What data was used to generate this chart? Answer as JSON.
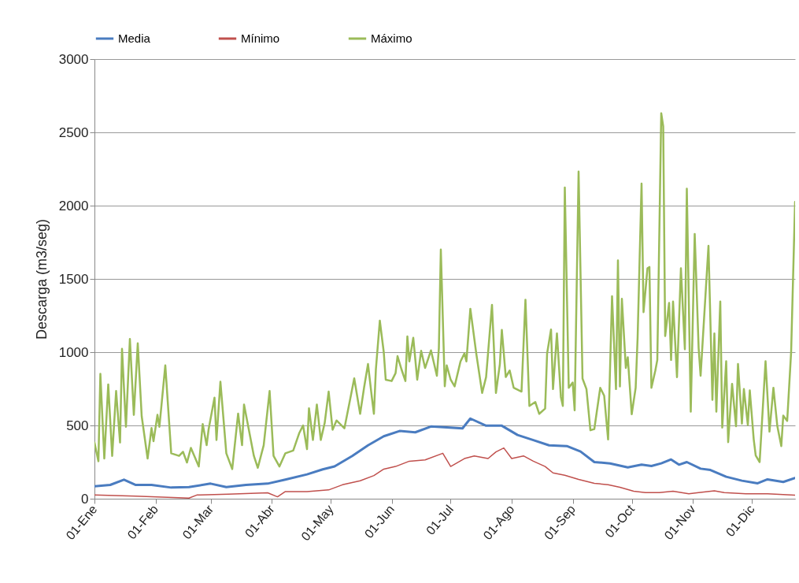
{
  "chart_data": {
    "type": "line",
    "ylabel": "Descarga (m3/seg)",
    "xlim": [
      "--01-01",
      "--12-23"
    ],
    "ylim": [
      0,
      3000
    ],
    "xticks": [
      {
        "value": "--01-01",
        "label": "01-Ene"
      },
      {
        "value": "--02-01",
        "label": "01-Feb"
      },
      {
        "value": "--03-01",
        "label": "01-Mar"
      },
      {
        "value": "--04-01",
        "label": "01-Abr"
      },
      {
        "value": "--05-01",
        "label": "01-May"
      },
      {
        "value": "--06-01",
        "label": "01-Jun"
      },
      {
        "value": "--07-01",
        "label": "01-Jul"
      },
      {
        "value": "--08-01",
        "label": "01-Ago"
      },
      {
        "value": "--09-01",
        "label": "01-Sep"
      },
      {
        "value": "--10-01",
        "label": "01-Oct"
      },
      {
        "value": "--11-01",
        "label": "01-Nov"
      },
      {
        "value": "--12-01",
        "label": "01-Dic"
      }
    ],
    "yticks": [
      0,
      500,
      1000,
      1500,
      2000,
      2500,
      3000
    ],
    "grid": "y",
    "legend": "top",
    "series": [
      {
        "name": "Media",
        "color": "#4a7cc0",
        "x": [
          "--01-01",
          "--01-09",
          "--01-16",
          "--01-22",
          "--01-30",
          "--02-09",
          "--02-18",
          "--03-01",
          "--03-09",
          "--03-19",
          "--03-30",
          "--04-08",
          "--04-19",
          "--04-27",
          "--05-03",
          "--05-12",
          "--05-20",
          "--05-28",
          "--06-05",
          "--06-13",
          "--06-21",
          "--06-29",
          "--07-07",
          "--07-11",
          "--07-19",
          "--07-27",
          "--08-04",
          "--08-12",
          "--08-20",
          "--08-29",
          "--09-05",
          "--09-12",
          "--09-20",
          "--09-29",
          "--10-06",
          "--10-11",
          "--10-16",
          "--10-21",
          "--10-25",
          "--10-29",
          "--11-05",
          "--11-10",
          "--11-18",
          "--11-26",
          "--12-04",
          "--12-09",
          "--12-17",
          "--12-23"
        ],
        "values": [
          85,
          94,
          130,
          94,
          94,
          76,
          79,
          103,
          79,
          94,
          103,
          130,
          166,
          200,
          220,
          292,
          364,
          426,
          462,
          453,
          493,
          486,
          480,
          547,
          498,
          498,
          435,
          400,
          364,
          359,
          322,
          250,
          241,
          214,
          232,
          223,
          241,
          268,
          232,
          250,
          205,
          196,
          150,
          123,
          105,
          132,
          114,
          141
        ]
      },
      {
        "name": "Mínimo",
        "color": "#c0504d",
        "x": [
          "--01-01",
          "--01-22",
          "--02-18",
          "--02-22",
          "--03-10",
          "--03-30",
          "--04-04",
          "--04-08",
          "--04-19",
          "--04-30",
          "--05-07",
          "--05-16",
          "--05-23",
          "--05-28",
          "--06-03",
          "--06-10",
          "--06-18",
          "--06-27",
          "--07-01",
          "--07-08",
          "--07-13",
          "--07-20",
          "--07-24",
          "--07-28",
          "--08-01",
          "--08-07",
          "--08-12",
          "--08-18",
          "--08-22",
          "--08-28",
          "--09-04",
          "--09-12",
          "--09-19",
          "--09-25",
          "--10-02",
          "--10-08",
          "--10-15",
          "--10-22",
          "--10-30",
          "--11-04",
          "--11-12",
          "--11-17",
          "--11-28",
          "--12-09",
          "--12-23"
        ],
        "values": [
          25,
          18,
          4,
          25,
          31,
          40,
          13,
          49,
          49,
          60,
          95,
          122,
          158,
          202,
          220,
          256,
          265,
          310,
          220,
          274,
          292,
          274,
          319,
          346,
          274,
          292,
          256,
          220,
          176,
          160,
          132,
          105,
          96,
          78,
          51,
          42,
          42,
          51,
          33,
          42,
          54,
          42,
          33,
          33,
          24
        ]
      },
      {
        "name": "Máximo",
        "color": "#9bbb59",
        "x": [
          "--01-01",
          "--01-03",
          "--01-04",
          "--01-06",
          "--01-08",
          "--01-10",
          "--01-12",
          "--01-14",
          "--01-15",
          "--01-17",
          "--01-19",
          "--01-21",
          "--01-23",
          "--01-25",
          "--01-28",
          "--01-30",
          "--01-31",
          "--02-02",
          "--02-03",
          "--02-06",
          "--02-09",
          "--02-13",
          "--02-15",
          "--02-17",
          "--02-19",
          "--02-23",
          "--02-25",
          "--02-27",
          "--02-28",
          "--03-03",
          "--03-04",
          "--03-06",
          "--03-09",
          "--03-12",
          "--03-15",
          "--03-17",
          "--03-18",
          "--03-23",
          "--03-25",
          "--03-28",
          "--03-31",
          "--04-02",
          "--04-05",
          "--04-08",
          "--04-12",
          "--04-15",
          "--04-17",
          "--04-19",
          "--04-20",
          "--04-22",
          "--04-24",
          "--04-26",
          "--04-28",
          "--04-30",
          "--05-02",
          "--05-04",
          "--05-08",
          "--05-10",
          "--05-13",
          "--05-16",
          "--05-18",
          "--05-20",
          "--05-22",
          "--05-23",
          "--05-24",
          "--05-26",
          "--05-28",
          "--05-29",
          "--06-01",
          "--06-03",
          "--06-04",
          "--06-06",
          "--06-08",
          "--06-09",
          "--06-10",
          "--06-12",
          "--06-14",
          "--06-16",
          "--06-18",
          "--06-21",
          "--06-24",
          "--06-25",
          "--06-26",
          "--06-28",
          "--06-29",
          "--07-01",
          "--07-03",
          "--07-06",
          "--07-08",
          "--07-09",
          "--07-11",
          "--07-14",
          "--07-17",
          "--07-19",
          "--07-22",
          "--07-24",
          "--07-26",
          "--07-27",
          "--07-29",
          "--07-31",
          "--08-02",
          "--08-06",
          "--08-08",
          "--08-10",
          "--08-13",
          "--08-15",
          "--08-18",
          "--08-19",
          "--08-21",
          "--08-22",
          "--08-24",
          "--08-26",
          "--08-27",
          "--08-28",
          "--08-30",
          "--09-01",
          "--09-02",
          "--09-04",
          "--09-06",
          "--09-08",
          "--09-10",
          "--09-12",
          "--09-15",
          "--09-17",
          "--09-19",
          "--09-21",
          "--09-23",
          "--09-24",
          "--09-25",
          "--09-26",
          "--09-28",
          "--09-29",
          "--10-01",
          "--10-03",
          "--10-04",
          "--10-06",
          "--10-07",
          "--10-09",
          "--10-10",
          "--10-11",
          "--10-13",
          "--10-14",
          "--10-16",
          "--10-17",
          "--10-18",
          "--10-20",
          "--10-21",
          "--10-22",
          "--10-24",
          "--10-26",
          "--10-28",
          "--10-29",
          "--10-31",
          "--11-02",
          "--11-04",
          "--11-05",
          "--11-09",
          "--11-11",
          "--11-12",
          "--11-13",
          "--11-15",
          "--11-16",
          "--11-18",
          "--11-19",
          "--11-21",
          "--11-23",
          "--11-24",
          "--11-26",
          "--11-27",
          "--11-29",
          "--11-30",
          "--12-02",
          "--12-03",
          "--12-05",
          "--12-08",
          "--12-10",
          "--12-12",
          "--12-14",
          "--12-16",
          "--12-17",
          "--12-19",
          "--12-21",
          "--12-23"
        ],
        "values": [
          383,
          256,
          852,
          274,
          780,
          292,
          735,
          383,
          1023,
          491,
          1090,
          572,
          1060,
          563,
          274,
          482,
          392,
          572,
          491,
          910,
          310,
          292,
          320,
          247,
          347,
          220,
          509,
          365,
          473,
          690,
          401,
          798,
          310,
          202,
          581,
          365,
          643,
          292,
          211,
          365,
          735,
          292,
          220,
          310,
          329,
          446,
          500,
          338,
          617,
          401,
          643,
          401,
          518,
          731,
          471,
          534,
          480,
          615,
          821,
          579,
          758,
          919,
          686,
          579,
          883,
          1215,
          1000,
          812,
          803,
          857,
          973,
          883,
          803,
          1107,
          937,
          1098,
          812,
          1009,
          892,
          1012,
          839,
          1027,
          1700,
          767,
          910,
          812,
          767,
          937,
          991,
          937,
          1296,
          991,
          722,
          830,
          1323,
          722,
          919,
          1152,
          830,
          875,
          758,
          731,
          1358,
          633,
          660,
          579,
          615,
          991,
          1155,
          748,
          1128,
          694,
          633,
          2124,
          757,
          793,
          603,
          2233,
          820,
          748,
          467,
          476,
          757,
          703,
          404,
          1382,
          748,
          1626,
          766,
          1364,
          893,
          965,
          576,
          757,
          1101,
          2151,
          1273,
          1572,
          1581,
          757,
          875,
          947,
          2631,
          2541,
          1110,
          1336,
          947,
          1345,
          829,
          1572,
          1020,
          2115,
          594,
          1807,
          1029,
          839,
          1726,
          675,
          1128,
          594,
          1346,
          485,
          938,
          386,
          784,
          494,
          920,
          512,
          748,
          503,
          739,
          404,
          295,
          250,
          938,
          458,
          757,
          494,
          359,
          567,
          531,
          1001,
          2025
        ]
      }
    ]
  }
}
